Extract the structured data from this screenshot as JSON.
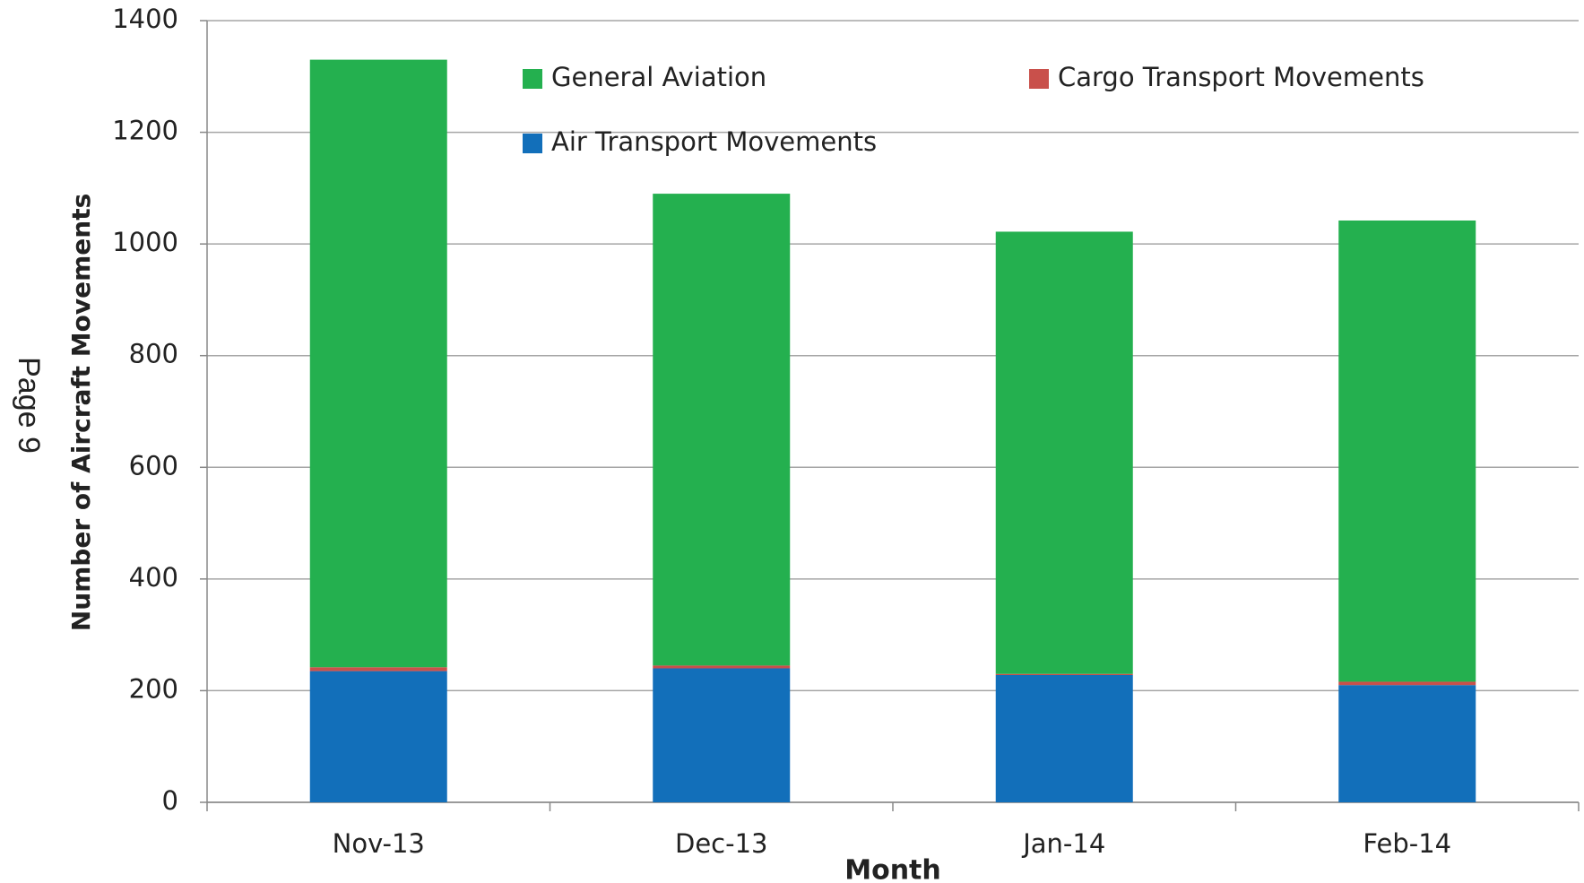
{
  "page_label": "Page 9",
  "chart_data": {
    "type": "stacked_bar",
    "x_label": "Month",
    "y_label": "Number of Aircraft Movements",
    "categories": [
      "Nov-13",
      "Dec-13",
      "Jan-14",
      "Feb-14"
    ],
    "series": [
      {
        "name": "Air Transport Movements",
        "color": "#126fba",
        "values": [
          235,
          240,
          228,
          210
        ]
      },
      {
        "name": "Cargo Transport Movements",
        "color": "#c9504b",
        "values": [
          7,
          5,
          2,
          6
        ]
      },
      {
        "name": "General Aviation",
        "color": "#24b04f",
        "values": [
          1088,
          845,
          792,
          826
        ]
      }
    ],
    "ylim": [
      0,
      1400
    ],
    "yticks": [
      0,
      200,
      400,
      600,
      800,
      1000,
      1200,
      1400
    ],
    "grid": true
  }
}
